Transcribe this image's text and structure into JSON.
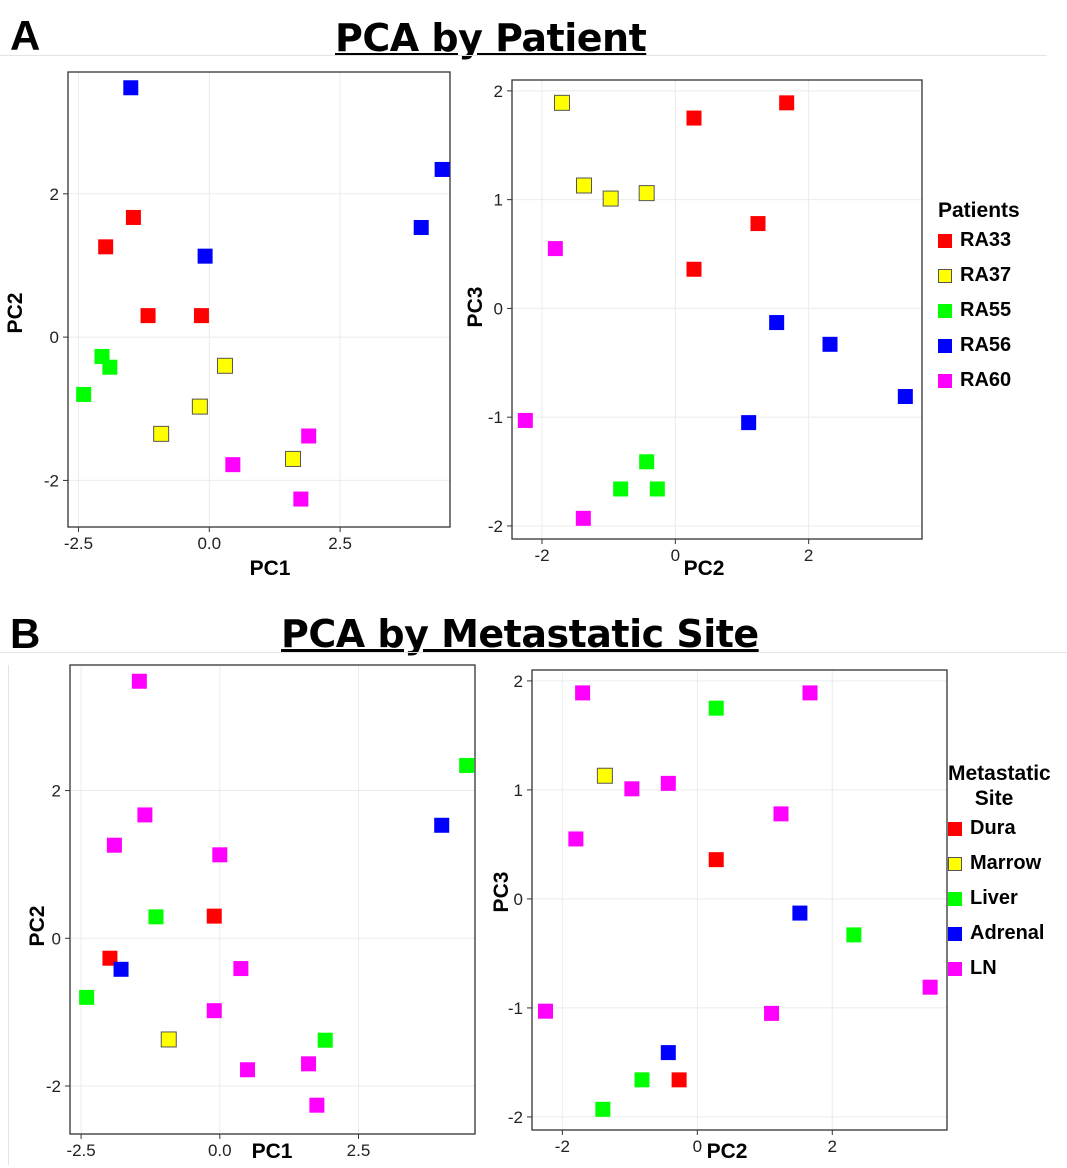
{
  "panels": [
    {
      "letter": "A",
      "title": "PCA by Patient",
      "legend": {
        "title": "Patients",
        "items": [
          {
            "label": "RA33",
            "color": "#ff0000"
          },
          {
            "label": "RA37",
            "color": "#ffff00"
          },
          {
            "label": "RA55",
            "color": "#00ff00"
          },
          {
            "label": "RA56",
            "color": "#0000ff"
          },
          {
            "label": "RA60",
            "color": "#ff00ff"
          }
        ]
      }
    },
    {
      "letter": "B",
      "title": "PCA by Metastatic Site",
      "legend": {
        "title": "Metastatic Site",
        "items": [
          {
            "label": "Dura",
            "color": "#ff0000"
          },
          {
            "label": "Marrow",
            "color": "#ffff00"
          },
          {
            "label": "Liver",
            "color": "#00ff00"
          },
          {
            "label": "Adrenal",
            "color": "#0000ff"
          },
          {
            "label": "LN",
            "color": "#ff00ff"
          }
        ]
      }
    }
  ],
  "chart_data": [
    {
      "type": "scatter",
      "panel": "A",
      "xlabel": "PC1",
      "ylabel": "PC2",
      "xlim": [
        -2.7,
        4.6
      ],
      "ylim": [
        -2.65,
        3.7
      ],
      "xticks": [
        -2.5,
        0.0,
        2.5
      ],
      "xtick_labels": [
        "-2.5",
        "0.0",
        "2.5"
      ],
      "yticks": [
        -2,
        0,
        2
      ],
      "ytick_labels": [
        "-2",
        "0",
        "2"
      ],
      "grid": true,
      "legend_position": "right",
      "series": [
        {
          "name": "RA33",
          "color": "#ff0000",
          "points": [
            [
              -1.45,
              1.67
            ],
            [
              -1.98,
              1.26
            ],
            [
              -1.17,
              0.3
            ],
            [
              -0.15,
              0.3
            ]
          ]
        },
        {
          "name": "RA37",
          "color": "#ffff00",
          "points": [
            [
              0.3,
              -0.4
            ],
            [
              -0.18,
              -0.97
            ],
            [
              -0.92,
              -1.35
            ],
            [
              1.6,
              -1.7
            ]
          ]
        },
        {
          "name": "RA55",
          "color": "#00ff00",
          "points": [
            [
              -2.05,
              -0.27
            ],
            [
              -1.9,
              -0.42
            ],
            [
              -2.4,
              -0.8
            ]
          ]
        },
        {
          "name": "RA56",
          "color": "#0000ff",
          "points": [
            [
              -1.5,
              3.48
            ],
            [
              -0.08,
              1.13
            ],
            [
              4.05,
              1.53
            ],
            [
              4.45,
              2.34
            ]
          ]
        },
        {
          "name": "RA60",
          "color": "#ff00ff",
          "points": [
            [
              1.9,
              -1.38
            ],
            [
              0.45,
              -1.78
            ],
            [
              1.75,
              -2.26
            ]
          ]
        }
      ]
    },
    {
      "type": "scatter",
      "panel": "A",
      "xlabel": "PC2",
      "ylabel": "PC3",
      "xlim": [
        -2.45,
        3.7
      ],
      "ylim": [
        -2.12,
        2.1
      ],
      "xticks": [
        -2,
        0,
        2
      ],
      "xtick_labels": [
        "-2",
        "0",
        "2"
      ],
      "yticks": [
        -2,
        -1,
        0,
        1,
        2
      ],
      "ytick_labels": [
        "-2",
        "-1",
        "0",
        "1",
        "2"
      ],
      "grid": true,
      "legend_position": "right",
      "series": [
        {
          "name": "RA33",
          "color": "#ff0000",
          "points": [
            [
              0.28,
              1.75
            ],
            [
              1.67,
              1.89
            ],
            [
              1.24,
              0.78
            ],
            [
              0.28,
              0.36
            ]
          ]
        },
        {
          "name": "RA37",
          "color": "#ffff00",
          "points": [
            [
              -1.7,
              1.89
            ],
            [
              -1.37,
              1.13
            ],
            [
              -0.97,
              1.01
            ],
            [
              -0.43,
              1.06
            ]
          ]
        },
        {
          "name": "RA55",
          "color": "#00ff00",
          "points": [
            [
              -0.43,
              -1.41
            ],
            [
              -0.82,
              -1.66
            ],
            [
              -0.27,
              -1.66
            ]
          ]
        },
        {
          "name": "RA56",
          "color": "#0000ff",
          "points": [
            [
              1.52,
              -0.13
            ],
            [
              2.32,
              -0.33
            ],
            [
              3.45,
              -0.81
            ],
            [
              1.1,
              -1.05
            ]
          ]
        },
        {
          "name": "RA60",
          "color": "#ff00ff",
          "points": [
            [
              -1.8,
              0.55
            ],
            [
              -2.25,
              -1.03
            ],
            [
              -1.38,
              -1.93
            ]
          ]
        }
      ]
    },
    {
      "type": "scatter",
      "panel": "B",
      "xlabel": "PC1",
      "ylabel": "PC2",
      "xlim": [
        -2.7,
        4.6
      ],
      "ylim": [
        -2.65,
        3.7
      ],
      "xticks": [
        -2.5,
        0.0,
        2.5
      ],
      "xtick_labels": [
        "-2.5",
        "0.0",
        "2.5"
      ],
      "yticks": [
        -2,
        0,
        2
      ],
      "ytick_labels": [
        "-2",
        "0",
        "2"
      ],
      "grid": true,
      "legend_position": "right",
      "series": [
        {
          "name": "Dura",
          "color": "#ff0000",
          "points": [
            [
              -0.1,
              0.3
            ],
            [
              -1.98,
              -0.27
            ]
          ]
        },
        {
          "name": "Marrow",
          "color": "#ffff00",
          "points": [
            [
              -0.92,
              -1.37
            ]
          ]
        },
        {
          "name": "Liver",
          "color": "#00ff00",
          "points": [
            [
              4.45,
              2.34
            ],
            [
              -1.15,
              0.29
            ],
            [
              -2.4,
              -0.8
            ],
            [
              1.9,
              -1.38
            ]
          ]
        },
        {
          "name": "Adrenal",
          "color": "#0000ff",
          "points": [
            [
              4.0,
              1.53
            ],
            [
              -1.78,
              -0.42
            ]
          ]
        },
        {
          "name": "LN",
          "color": "#ff00ff",
          "points": [
            [
              -1.45,
              3.48
            ],
            [
              -1.35,
              1.67
            ],
            [
              -1.9,
              1.26
            ],
            [
              0.0,
              1.13
            ],
            [
              0.38,
              -0.41
            ],
            [
              -0.1,
              -0.98
            ],
            [
              0.5,
              -1.78
            ],
            [
              1.6,
              -1.7
            ],
            [
              1.75,
              -2.26
            ]
          ]
        }
      ]
    },
    {
      "type": "scatter",
      "panel": "B",
      "xlabel": "PC2",
      "ylabel": "PC3",
      "xlim": [
        -2.45,
        3.7
      ],
      "ylim": [
        -2.12,
        2.1
      ],
      "xticks": [
        -2,
        0,
        2
      ],
      "xtick_labels": [
        "-2",
        "0",
        "2"
      ],
      "yticks": [
        -2,
        -1,
        0,
        1,
        2
      ],
      "ytick_labels": [
        "-2",
        "-1",
        "0",
        "1",
        "2"
      ],
      "grid": true,
      "legend_position": "right",
      "series": [
        {
          "name": "Dura",
          "color": "#ff0000",
          "points": [
            [
              0.28,
              0.36
            ],
            [
              -0.27,
              -1.66
            ]
          ]
        },
        {
          "name": "Marrow",
          "color": "#ffff00",
          "points": [
            [
              -1.37,
              1.13
            ]
          ]
        },
        {
          "name": "Liver",
          "color": "#00ff00",
          "points": [
            [
              0.28,
              1.75
            ],
            [
              2.32,
              -0.33
            ],
            [
              -0.82,
              -1.66
            ],
            [
              -1.4,
              -1.93
            ]
          ]
        },
        {
          "name": "Adrenal",
          "color": "#0000ff",
          "points": [
            [
              1.52,
              -0.13
            ],
            [
              -0.43,
              -1.41
            ]
          ]
        },
        {
          "name": "LN",
          "color": "#ff00ff",
          "points": [
            [
              -1.7,
              1.89
            ],
            [
              1.67,
              1.89
            ],
            [
              -0.97,
              1.01
            ],
            [
              -0.43,
              1.06
            ],
            [
              1.24,
              0.78
            ],
            [
              -1.8,
              0.55
            ],
            [
              3.45,
              -0.81
            ],
            [
              1.1,
              -1.05
            ],
            [
              -2.25,
              -1.03
            ]
          ]
        }
      ]
    }
  ]
}
